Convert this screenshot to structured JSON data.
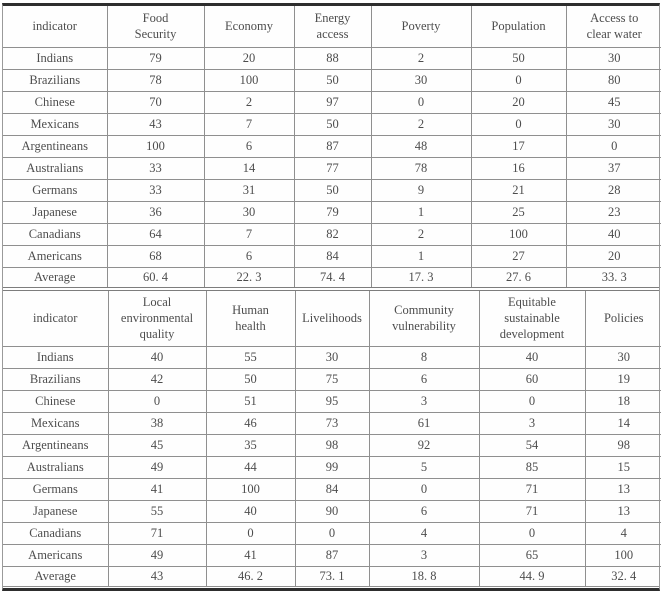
{
  "tables": [
    {
      "name": "indicator-scores-part-1",
      "header": [
        "indicator",
        "Food\nSecurity",
        "Economy",
        "Energy\naccess",
        "Poverty",
        "Population",
        "Access to\nclear water"
      ],
      "rows": [
        {
          "label": "Indians",
          "values": [
            "79",
            "20",
            "88",
            "2",
            "50",
            "30"
          ]
        },
        {
          "label": "Brazilians",
          "values": [
            "78",
            "100",
            "50",
            "30",
            "0",
            "80"
          ]
        },
        {
          "label": "Chinese",
          "values": [
            "70",
            "2",
            "97",
            "0",
            "20",
            "45"
          ]
        },
        {
          "label": "Mexicans",
          "values": [
            "43",
            "7",
            "50",
            "2",
            "0",
            "30"
          ]
        },
        {
          "label": "Argentineans",
          "values": [
            "100",
            "6",
            "87",
            "48",
            "17",
            "0"
          ]
        },
        {
          "label": "Australians",
          "values": [
            "33",
            "14",
            "77",
            "78",
            "16",
            "37"
          ]
        },
        {
          "label": "Germans",
          "values": [
            "33",
            "31",
            "50",
            "9",
            "21",
            "28"
          ]
        },
        {
          "label": "Japanese",
          "values": [
            "36",
            "30",
            "79",
            "1",
            "25",
            "23"
          ]
        },
        {
          "label": "Canadians",
          "values": [
            "64",
            "7",
            "82",
            "2",
            "100",
            "40"
          ]
        },
        {
          "label": "Americans",
          "values": [
            "68",
            "6",
            "84",
            "1",
            "27",
            "20"
          ]
        },
        {
          "label": "Average",
          "values": [
            "60. 4",
            "22. 3",
            "74. 4",
            "17. 3",
            "27. 6",
            "33. 3"
          ]
        }
      ]
    },
    {
      "name": "indicator-scores-part-2",
      "header": [
        "indicator",
        "Local\nenvironmental\nquality",
        "Human\nhealth",
        "Livelihoods",
        "Community\nvulnerability",
        "Equitable\nsustainable\ndevelopment",
        "Policies"
      ],
      "rows": [
        {
          "label": "Indians",
          "values": [
            "40",
            "55",
            "30",
            "8",
            "40",
            "30"
          ]
        },
        {
          "label": "Brazilians",
          "values": [
            "42",
            "50",
            "75",
            "6",
            "60",
            "19"
          ]
        },
        {
          "label": "Chinese",
          "values": [
            "0",
            "51",
            "95",
            "3",
            "0",
            "18"
          ]
        },
        {
          "label": "Mexicans",
          "values": [
            "38",
            "46",
            "73",
            "61",
            "3",
            "14"
          ]
        },
        {
          "label": "Argentineans",
          "values": [
            "45",
            "35",
            "98",
            "92",
            "54",
            "98"
          ]
        },
        {
          "label": "Australians",
          "values": [
            "49",
            "44",
            "99",
            "5",
            "85",
            "15"
          ]
        },
        {
          "label": "Germans",
          "values": [
            "41",
            "100",
            "84",
            "0",
            "71",
            "13"
          ]
        },
        {
          "label": "Japanese",
          "values": [
            "55",
            "40",
            "90",
            "6",
            "71",
            "13"
          ]
        },
        {
          "label": "Canadians",
          "values": [
            "71",
            "0",
            "0",
            "4",
            "0",
            "4"
          ]
        },
        {
          "label": "Americans",
          "values": [
            "49",
            "41",
            "87",
            "3",
            "65",
            "100"
          ]
        },
        {
          "label": "Average",
          "values": [
            "43",
            "46. 2",
            "73. 1",
            "18. 8",
            "44. 9",
            "32. 4"
          ]
        }
      ]
    }
  ]
}
